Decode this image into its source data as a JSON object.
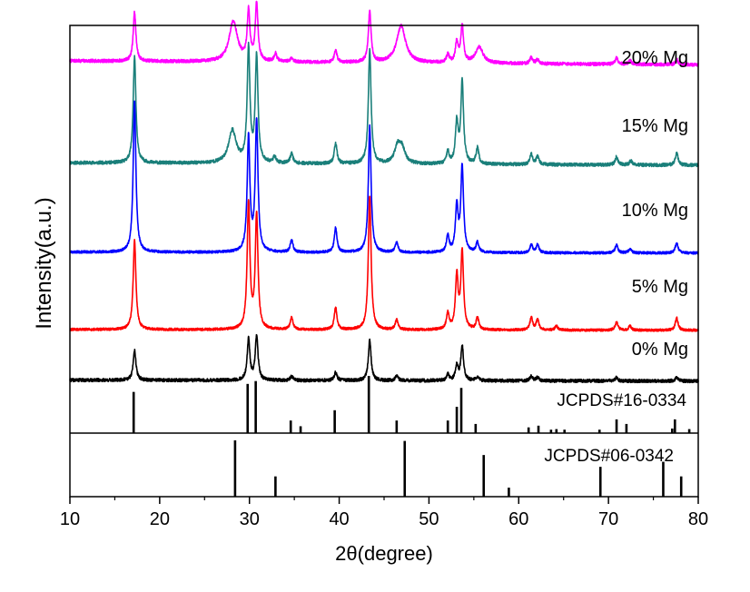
{
  "chart_data": {
    "type": "line",
    "title": "",
    "xlabel": "2θ(degree)",
    "ylabel": "Intensity(a.u.)",
    "xlim": [
      10,
      80
    ],
    "xticks": [
      10,
      20,
      30,
      40,
      50,
      60,
      70,
      80
    ],
    "y_units": "a.u. (stacked, offset traces)",
    "legend": "trace labels placed at right of each curve",
    "series": [
      {
        "name": "20% Mg",
        "color": "#ff00ff",
        "offset": 0.905,
        "baseline": 0.008,
        "slope": -0.08,
        "noise": 0.004,
        "seed": 7,
        "peaks": [
          [
            17.2,
            0.12
          ],
          [
            28.2,
            0.1,
            0.55
          ],
          [
            29.9,
            0.12
          ],
          [
            30.8,
            0.14
          ],
          [
            32.9,
            0.02
          ],
          [
            34.7,
            0.01
          ],
          [
            39.6,
            0.03
          ],
          [
            43.4,
            0.125
          ],
          [
            46.9,
            0.09,
            0.6
          ],
          [
            52.1,
            0.02
          ],
          [
            53.1,
            0.05
          ],
          [
            53.7,
            0.09
          ],
          [
            55.6,
            0.04,
            0.5
          ],
          [
            61.4,
            0.015
          ],
          [
            62.1,
            0.01
          ],
          [
            70.9,
            0.015
          ],
          [
            72.4,
            0.01
          ],
          [
            77.6,
            0.012
          ]
        ]
      },
      {
        "name": "15% Mg",
        "color": "#1a7f7a",
        "offset": 0.655,
        "baseline": 0.008,
        "slope": -0.05,
        "noise": 0.004,
        "seed": 11,
        "peaks": [
          [
            17.2,
            0.26
          ],
          [
            28.1,
            0.08,
            0.5
          ],
          [
            29.9,
            0.28
          ],
          [
            30.8,
            0.26
          ],
          [
            32.8,
            0.015
          ],
          [
            34.7,
            0.025
          ],
          [
            39.6,
            0.05
          ],
          [
            43.4,
            0.28
          ],
          [
            46.5,
            0.04,
            0.4
          ],
          [
            47.0,
            0.035,
            0.4
          ],
          [
            52.1,
            0.03
          ],
          [
            53.1,
            0.1
          ],
          [
            53.7,
            0.2
          ],
          [
            55.4,
            0.04
          ],
          [
            61.4,
            0.025
          ],
          [
            62.1,
            0.02
          ],
          [
            70.9,
            0.02
          ],
          [
            72.5,
            0.01
          ],
          [
            77.6,
            0.03
          ]
        ]
      },
      {
        "name": "10% Mg",
        "color": "#0000ff",
        "offset": 0.44,
        "baseline": 0.004,
        "slope": -0.02,
        "noise": 0.003,
        "seed": 23,
        "peaks": [
          [
            17.2,
            0.37
          ],
          [
            29.9,
            0.28
          ],
          [
            30.8,
            0.32
          ],
          [
            34.7,
            0.03
          ],
          [
            39.6,
            0.06
          ],
          [
            43.4,
            0.31
          ],
          [
            46.4,
            0.025
          ],
          [
            52.1,
            0.04
          ],
          [
            53.1,
            0.11
          ],
          [
            53.7,
            0.21
          ],
          [
            55.4,
            0.025
          ],
          [
            61.4,
            0.02
          ],
          [
            62.1,
            0.02
          ],
          [
            70.9,
            0.02
          ],
          [
            72.4,
            0.01
          ],
          [
            77.6,
            0.025
          ]
        ]
      },
      {
        "name": "5% Mg",
        "color": "#ff0000",
        "offset": 0.25,
        "baseline": 0.004,
        "slope": -0.015,
        "noise": 0.003,
        "seed": 31,
        "peaks": [
          [
            17.2,
            0.22
          ],
          [
            29.9,
            0.31
          ],
          [
            30.8,
            0.28
          ],
          [
            34.7,
            0.03
          ],
          [
            39.6,
            0.055
          ],
          [
            43.4,
            0.33
          ],
          [
            46.4,
            0.025
          ],
          [
            52.1,
            0.04
          ],
          [
            53.1,
            0.13
          ],
          [
            53.7,
            0.19
          ],
          [
            55.4,
            0.03
          ],
          [
            61.4,
            0.03
          ],
          [
            62.1,
            0.025
          ],
          [
            64.2,
            0.01
          ],
          [
            70.9,
            0.02
          ],
          [
            72.4,
            0.01
          ],
          [
            77.6,
            0.03
          ]
        ]
      },
      {
        "name": "0% Mg",
        "color": "#000000",
        "offset": 0.125,
        "baseline": 0.005,
        "slope": -0.02,
        "noise": 0.004,
        "seed": 41,
        "peaks": [
          [
            17.2,
            0.075
          ],
          [
            29.9,
            0.1
          ],
          [
            30.8,
            0.11
          ],
          [
            34.7,
            0.01
          ],
          [
            39.6,
            0.02
          ],
          [
            43.4,
            0.1
          ],
          [
            46.4,
            0.012
          ],
          [
            52.1,
            0.015
          ],
          [
            53.1,
            0.035
          ],
          [
            53.7,
            0.085
          ],
          [
            55.4,
            0.01
          ],
          [
            61.4,
            0.012
          ],
          [
            62.1,
            0.008
          ],
          [
            70.9,
            0.008
          ],
          [
            77.6,
            0.01
          ]
        ]
      }
    ],
    "references": [
      {
        "name": "JCPDS#16-0334",
        "bars": [
          [
            17.1,
            0.72
          ],
          [
            29.8,
            0.86
          ],
          [
            30.7,
            0.91
          ],
          [
            34.6,
            0.22
          ],
          [
            35.7,
            0.12
          ],
          [
            39.5,
            0.4
          ],
          [
            43.3,
            1.0
          ],
          [
            46.4,
            0.22
          ],
          [
            52.1,
            0.22
          ],
          [
            53.1,
            0.46
          ],
          [
            53.6,
            0.79
          ],
          [
            55.2,
            0.16
          ],
          [
            61.1,
            0.1
          ],
          [
            62.2,
            0.13
          ],
          [
            63.6,
            0.06
          ],
          [
            64.2,
            0.07
          ],
          [
            65.1,
            0.06
          ],
          [
            69.0,
            0.06
          ],
          [
            70.9,
            0.24
          ],
          [
            72.0,
            0.16
          ],
          [
            77.1,
            0.08
          ],
          [
            77.4,
            0.24
          ],
          [
            79.0,
            0.07
          ]
        ]
      },
      {
        "name": "JCPDS#06-0342",
        "bars": [
          [
            28.4,
            1.0
          ],
          [
            32.9,
            0.36
          ],
          [
            47.3,
            0.99
          ],
          [
            56.1,
            0.74
          ],
          [
            58.9,
            0.16
          ],
          [
            69.1,
            0.53
          ],
          [
            76.1,
            0.62
          ],
          [
            78.1,
            0.36
          ]
        ]
      }
    ]
  }
}
